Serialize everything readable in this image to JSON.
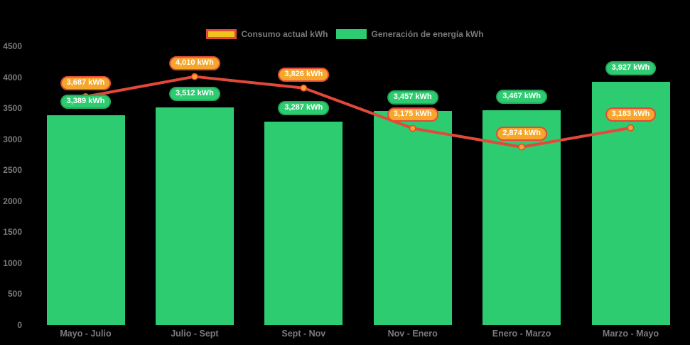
{
  "chart_data": {
    "type": "combo",
    "title": "",
    "categories": [
      "Mayo - Julio",
      "Julio - Sept",
      "Sept - Nov",
      "Nov - Enero",
      "Enero - Marzo",
      "Marzo - Mayo"
    ],
    "series": [
      {
        "name": "Consumo actual kWh",
        "type": "line",
        "values": [
          3687,
          4010,
          3826,
          3175,
          2874,
          3183
        ],
        "line_color": "#E2493B",
        "marker_fill": "#F5A62B",
        "marker_border": "#E2493B",
        "label_bg": "#F5A62B",
        "label_border": "#E2493B",
        "label_text_color": "#FFFFFF",
        "legend_swatch_fill": "#EFC31C",
        "legend_swatch_border": "#E2493B"
      },
      {
        "name": "Generación de energía kWh",
        "type": "bar",
        "values": [
          3389,
          3512,
          3287,
          3457,
          3467,
          3927
        ],
        "bar_color": "#2ECC71",
        "label_bg": "#2ECC71",
        "label_border": "#24A85C",
        "label_text_color": "#FFFFFF",
        "legend_swatch_fill": "#2ECC71",
        "legend_swatch_border": "#2ECC71"
      }
    ],
    "value_labels": {
      "consumption": [
        "3,687 kWh",
        "4,010 kWh",
        "3,826 kWh",
        "3,175 kWh",
        "2,874 kWh",
        "3,183 kWh"
      ],
      "generation": [
        "3,389 kWh",
        "3,512 kWh",
        "3,287 kWh",
        "3,457 kWh",
        "3,467 kWh",
        "3,927 kWh"
      ]
    },
    "value_suffix": " kWh",
    "ylim": [
      0,
      4500
    ],
    "yticks": [
      0,
      500,
      1000,
      1500,
      2000,
      2500,
      3000,
      3500,
      4000,
      4500
    ],
    "grid": false,
    "legend_position": "top",
    "axis_text_color": "#7A7A7A",
    "background": "#000000"
  }
}
